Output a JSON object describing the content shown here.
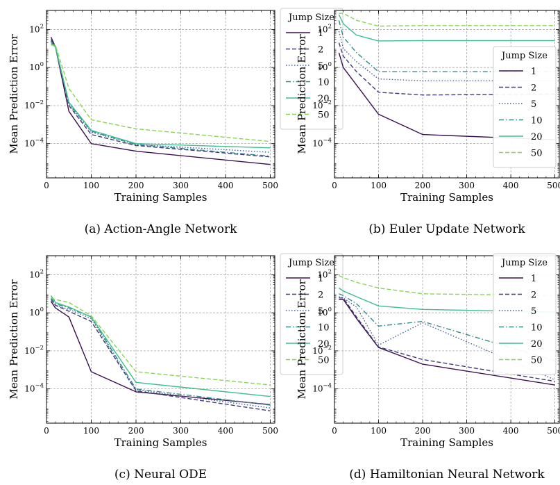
{
  "figure": {
    "jump_sizes": [
      "1",
      "2",
      "5",
      "10",
      "20",
      "50"
    ],
    "series_colors": [
      "#3b0f4f",
      "#403a7a",
      "#3f5f9c",
      "#2f8a8d",
      "#3bbf8c",
      "#86d552"
    ],
    "series_dash": [
      "solid",
      "dashed",
      "dotted",
      "dashdot",
      "solid",
      "dashed"
    ]
  },
  "chart_data": [
    {
      "type": "line",
      "caption": "(a) Action-Angle Network",
      "xlabel": "Training Samples",
      "ylabel": "Mean Prediction Error",
      "legend_title": "Jump Size",
      "legend_position": "upper right",
      "xlim": [
        0,
        510
      ],
      "ylim_exp": [
        -5.8,
        3
      ],
      "yscale": "log",
      "grid": true,
      "xticks": [
        0,
        100,
        200,
        300,
        400,
        500
      ],
      "yticks": [
        "10^{2}",
        "10^{0}",
        "10^{-2}",
        "10^{-4}"
      ],
      "x": [
        10,
        20,
        50,
        100,
        200,
        500
      ],
      "series": [
        {
          "name": "1",
          "values": [
            40,
            12,
            0.005,
            0.0001,
            4e-05,
            8e-06
          ]
        },
        {
          "name": "2",
          "values": [
            30,
            12,
            0.01,
            0.0003,
            8e-05,
            2e-05
          ]
        },
        {
          "name": "5",
          "values": [
            25,
            12,
            0.012,
            0.0004,
            9e-05,
            3.5e-05
          ]
        },
        {
          "name": "10",
          "values": [
            22,
            12,
            0.013,
            0.00045,
            9e-05,
            2.2e-05
          ]
        },
        {
          "name": "20",
          "values": [
            18,
            12,
            0.015,
            0.0005,
            0.0001,
            6e-05
          ]
        },
        {
          "name": "50",
          "values": [
            15,
            15,
            0.08,
            0.0018,
            0.0006,
            0.00013
          ]
        }
      ]
    },
    {
      "type": "line",
      "caption": "(b) Euler Update Network",
      "xlabel": "Training Samples",
      "ylabel": "Mean Prediction Error",
      "legend_title": "Jump Size",
      "legend_position": "right",
      "xlim": [
        0,
        510
      ],
      "ylim_exp": [
        -5.8,
        3
      ],
      "yscale": "log",
      "grid": true,
      "xticks": [
        0,
        100,
        200,
        300,
        400,
        500
      ],
      "yticks": [
        "10^{2}",
        "10^{0}",
        "10^{-2}",
        "10^{-4}"
      ],
      "x": [
        10,
        20,
        50,
        100,
        200,
        500
      ],
      "series": [
        {
          "name": "1",
          "values": [
            6,
            1,
            0.12,
            0.0035,
            0.0003,
            0.00016
          ]
        },
        {
          "name": "2",
          "values": [
            20,
            4,
            0.6,
            0.05,
            0.036,
            0.04
          ]
        },
        {
          "name": "5",
          "values": [
            80,
            10,
            2,
            0.25,
            0.2,
            0.2
          ]
        },
        {
          "name": "10",
          "values": [
            300,
            40,
            6,
            0.6,
            0.6,
            0.6
          ]
        },
        {
          "name": "20",
          "values": [
            600,
            200,
            50,
            25,
            26,
            26
          ]
        },
        {
          "name": "50",
          "values": [
            700,
            700,
            300,
            150,
            160,
            160
          ]
        }
      ]
    },
    {
      "type": "line",
      "caption": "(c) Neural ODE",
      "xlabel": "Training Samples",
      "ylabel": "Mean Prediction Error",
      "legend_title": "Jump Size",
      "legend_position": "upper right",
      "xlim": [
        0,
        510
      ],
      "ylim_exp": [
        -5.8,
        3
      ],
      "yscale": "log",
      "grid": true,
      "xticks": [
        0,
        100,
        200,
        300,
        400,
        500
      ],
      "yticks": [
        "10^{2}",
        "10^{0}",
        "10^{-2}",
        "10^{-4}"
      ],
      "x": [
        10,
        20,
        50,
        100,
        200,
        500
      ],
      "series": [
        {
          "name": "1",
          "values": [
            4,
            1.8,
            0.6,
            0.0008,
            7e-05,
            1.5e-05
          ]
        },
        {
          "name": "2",
          "values": [
            5,
            2.5,
            1.2,
            0.35,
            8e-05,
            7e-06
          ]
        },
        {
          "name": "5",
          "values": [
            5,
            2.5,
            1.5,
            0.5,
            9e-05,
            1e-05
          ]
        },
        {
          "name": "10",
          "values": [
            6,
            3,
            1.8,
            0.6,
            0.0001,
            1.4e-05
          ]
        },
        {
          "name": "20",
          "values": [
            8,
            3.5,
            2,
            0.6,
            0.00022,
            4e-05
          ]
        },
        {
          "name": "50",
          "values": [
            6,
            5,
            3.5,
            0.7,
            0.0008,
            0.00016
          ]
        }
      ]
    },
    {
      "type": "line",
      "caption": "(d) Hamiltonian Neural Network",
      "xlabel": "Training Samples",
      "ylabel": "Mean Prediction Error",
      "legend_title": "Jump Size",
      "legend_position": "upper right",
      "xlim": [
        0,
        510
      ],
      "ylim_exp": [
        -5.8,
        3
      ],
      "yscale": "log",
      "grid": true,
      "xticks": [
        0,
        100,
        200,
        300,
        400,
        500
      ],
      "yticks": [
        "10^{2}",
        "10^{0}",
        "10^{-2}",
        "10^{-4}"
      ],
      "x": [
        10,
        20,
        50,
        100,
        200,
        500
      ],
      "series": [
        {
          "name": "1",
          "values": [
            5,
            5,
            0.5,
            0.015,
            0.002,
            0.00016
          ]
        },
        {
          "name": "2",
          "values": [
            6,
            6,
            0.6,
            0.016,
            0.0035,
            0.00025
          ]
        },
        {
          "name": "5",
          "values": [
            7,
            6,
            2,
            0.02,
            0.3,
            0.0003
          ]
        },
        {
          "name": "10",
          "values": [
            10,
            8,
            3,
            0.2,
            0.35,
            0.003
          ]
        },
        {
          "name": "20",
          "values": [
            20,
            14,
            7,
            2.3,
            1.5,
            1.1
          ]
        },
        {
          "name": "50",
          "values": [
            90,
            70,
            40,
            20,
            10,
            8
          ]
        }
      ]
    }
  ]
}
